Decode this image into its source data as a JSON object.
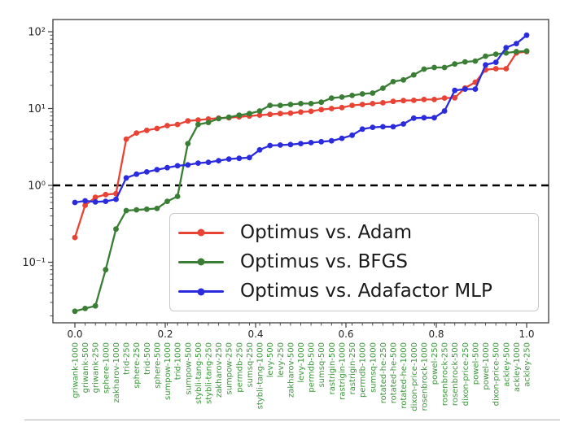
{
  "figure": {
    "background": "#ffffff",
    "separator_color": "#b0b0b0",
    "spine_color": "#3c3c3c",
    "tick_label_color": "#262626"
  },
  "chart_data": {
    "type": "line",
    "yscale": "log",
    "title": "",
    "xlabel": "",
    "ylabel": "",
    "grid": false,
    "xlim": [
      -0.05,
      1.05
    ],
    "ylim": [
      0.016,
      144
    ],
    "x_tick_labels": [
      "0.0",
      "0.2",
      "0.4",
      "0.6",
      "0.8",
      "1.0"
    ],
    "x_tick_values": [
      0.0,
      0.2,
      0.4,
      0.6,
      0.8,
      1.0
    ],
    "y_ticks": [
      {
        "label": "10²",
        "value": 100
      },
      {
        "label": "10¹",
        "value": 10
      },
      {
        "label": "10⁰",
        "value": 1
      },
      {
        "label": "10⁻¹",
        "value": 0.1
      }
    ],
    "reference_line": {
      "y": 1.0,
      "style": "dashed",
      "color": "#000000"
    },
    "category_label_color": "#3c963c",
    "categories": [
      "griwank-1000",
      "griwank-500",
      "griwank-250",
      "sphere-1000",
      "zakharov-1000",
      "trid-250",
      "sphere-250",
      "trid-500",
      "sphere-500",
      "sumpow-1000",
      "trid-1000",
      "sumpow-500",
      "stybli-tang-500",
      "stybli-tang-250",
      "zakharov-250",
      "sumpow-250",
      "permdb-250",
      "sumsq-250",
      "stybli-tang-1000",
      "levy-500",
      "levy-250",
      "zakharov-500",
      "levy-1000",
      "permdb-500",
      "sumsq-500",
      "rastrigin-500",
      "rastrigin-1000",
      "rastrigin-250",
      "permdb-1000",
      "sumsq-1000",
      "rotated-he-250",
      "rotated-he-500",
      "rotated-he-1000",
      "dixon-price-1000",
      "rosenbrock-1000",
      "powel-250",
      "rosenbrock-250",
      "rosenbrock-500",
      "dixon-price-250",
      "powel-500",
      "powel-1000",
      "dixon-price-500",
      "ackley-500",
      "ackley-1000",
      "ackley-250"
    ],
    "x_positions_note": "45 points evenly spaced from 0.0 to 1.0",
    "series": [
      {
        "name": "Optimus vs. Adam",
        "color": "#e84335",
        "values": [
          0.21,
          0.55,
          0.7,
          0.76,
          0.78,
          4.0,
          4.8,
          5.2,
          5.5,
          6.0,
          6.2,
          6.9,
          7.1,
          7.3,
          7.5,
          7.6,
          7.8,
          8.0,
          8.2,
          8.4,
          8.6,
          8.7,
          9.0,
          9.2,
          9.7,
          10.0,
          10.3,
          11.0,
          11.3,
          11.6,
          11.9,
          12.4,
          12.7,
          12.8,
          13.1,
          13.1,
          13.7,
          13.8,
          18.5,
          22,
          32,
          33,
          33,
          53,
          55
        ]
      },
      {
        "name": "Optimus vs. BFGS",
        "color": "#3a7d34",
        "values": [
          0.023,
          0.025,
          0.027,
          0.08,
          0.27,
          0.47,
          0.48,
          0.49,
          0.5,
          0.62,
          0.72,
          3.5,
          6.2,
          6.6,
          7.4,
          7.7,
          8.2,
          8.6,
          9.3,
          11.0,
          11.0,
          11.3,
          11.6,
          11.6,
          12.1,
          13.7,
          14.1,
          14.8,
          15.5,
          15.9,
          18.4,
          22.4,
          23.6,
          27.4,
          32.6,
          34.2,
          34.2,
          38,
          40.5,
          41.5,
          48,
          51,
          53,
          55,
          56
        ]
      },
      {
        "name": "Optimus vs. Adafactor MLP",
        "color": "#2b2bde",
        "values": [
          0.6,
          0.63,
          0.61,
          0.62,
          0.66,
          1.25,
          1.4,
          1.5,
          1.6,
          1.7,
          1.8,
          1.85,
          1.95,
          2.0,
          2.1,
          2.2,
          2.25,
          2.3,
          2.9,
          3.3,
          3.35,
          3.4,
          3.5,
          3.6,
          3.7,
          3.8,
          4.1,
          4.5,
          5.4,
          5.7,
          5.8,
          5.8,
          6.3,
          7.5,
          7.6,
          7.6,
          9.3,
          17.2,
          17.9,
          17.9,
          37,
          40,
          62,
          70,
          90
        ]
      }
    ],
    "legend_position": "lower center"
  }
}
